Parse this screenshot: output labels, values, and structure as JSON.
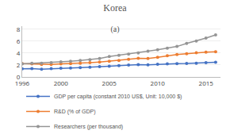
{
  "chart_data": {
    "type": "line",
    "title": "Korea",
    "subtitle": "(a)",
    "x": [
      1996,
      1997,
      1998,
      1999,
      2000,
      2001,
      2002,
      2003,
      2004,
      2005,
      2006,
      2007,
      2008,
      2009,
      2010,
      2011,
      2012,
      2013,
      2014,
      2015,
      2016
    ],
    "series": [
      {
        "name": "GDP per capita (constant 2010 US$, Unit: 10,000 $)",
        "color": "#4472C4",
        "marker": "circle",
        "values": [
          1.35,
          1.4,
          1.28,
          1.38,
          1.47,
          1.48,
          1.56,
          1.62,
          1.72,
          1.8,
          1.9,
          2.0,
          2.05,
          2.02,
          2.12,
          2.18,
          2.22,
          2.25,
          2.3,
          2.38,
          2.45
        ]
      },
      {
        "name": "R&D (% of GDP)",
        "color": "#ED7D31",
        "marker": "circle",
        "values": [
          2.22,
          2.2,
          2.1,
          2.08,
          2.18,
          2.22,
          2.28,
          2.38,
          2.5,
          2.62,
          2.76,
          2.95,
          3.12,
          3.08,
          3.3,
          3.55,
          3.75,
          3.9,
          4.05,
          4.15,
          4.22
        ]
      },
      {
        "name": "Researchers (per thousand)",
        "color": "#959595",
        "marker": "circle",
        "values": [
          2.2,
          2.28,
          2.28,
          2.38,
          2.52,
          2.62,
          2.74,
          2.9,
          3.1,
          3.42,
          3.62,
          3.82,
          4.02,
          4.32,
          4.55,
          4.8,
          5.1,
          5.6,
          6.02,
          6.5,
          7.05
        ]
      }
    ],
    "xlim": [
      1996,
      2016.5
    ],
    "ylim": [
      0,
      8.5
    ],
    "xticks": [
      1996,
      2000,
      2005,
      2010,
      2015
    ],
    "yticks": [
      0,
      2,
      4,
      6,
      8
    ],
    "grid": "y",
    "legend": "bottom"
  }
}
